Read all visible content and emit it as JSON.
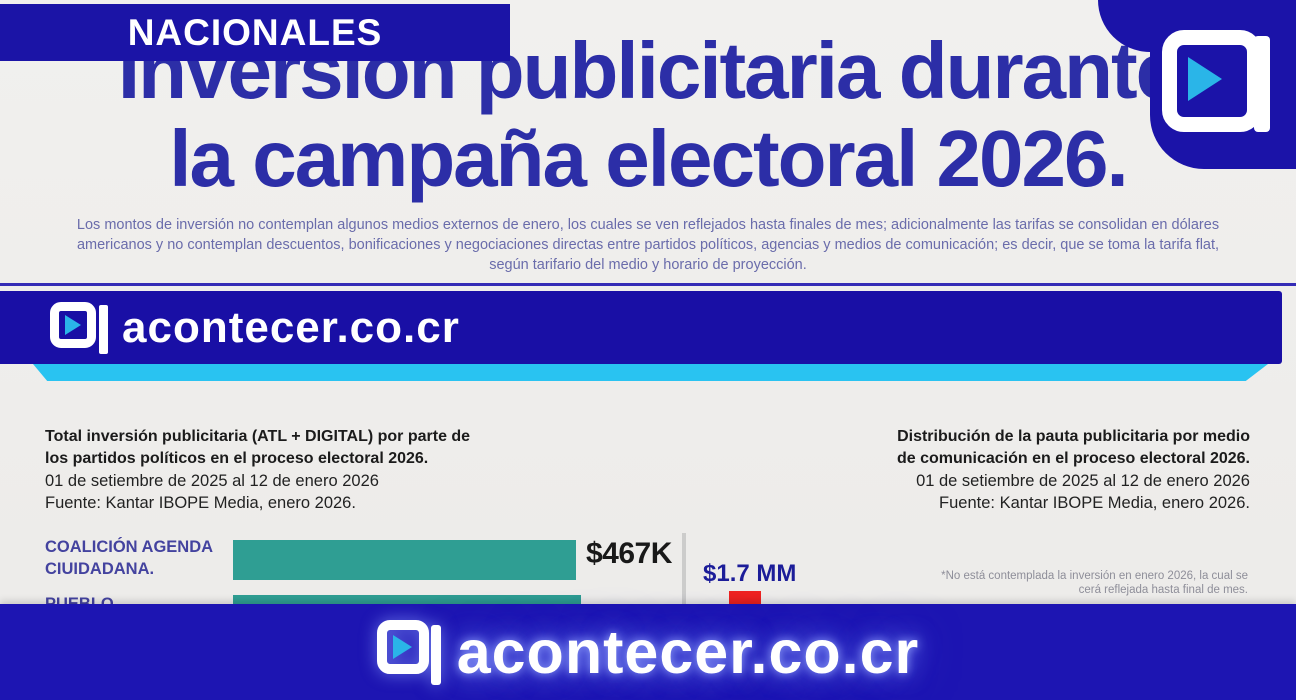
{
  "badge": {
    "label": "NACIONALES"
  },
  "headline": {
    "line1": "Inversión publicitaria durante",
    "line2": "la campaña electoral 2026."
  },
  "disclaimer": {
    "line1": "Los montos de inversión no contemplan algunos medios externos de enero, los cuales se ven reflejados hasta finales de mes; adicionalmente las tarifas se consolidan en dólares",
    "line2": "americanos y no contemplan descuentos, bonificaciones y negociaciones directas entre partidos políticos, agencias y medios de comunicación; es decir, que se toma la tarifa flat,",
    "line3": "según tarifario del medio y horario de proyección."
  },
  "brand": {
    "wordmark": "acontecer.co.cr"
  },
  "left_chart": {
    "title_line1": "Total inversión publicitaria (ATL + DIGITAL) por parte de",
    "title_line2": "los partidos políticos en el proceso electoral 2026.",
    "date_line": "01 de setiembre de 2025 al 12 de enero 2026",
    "source_line": "Fuente: Kantar IBOPE Media, enero 2026.",
    "rows": [
      {
        "label_line1": "COALICIÓN AGENDA",
        "label_line2": "CIUIDADANA.",
        "value": "$467K"
      },
      {
        "label_line1": "PUEBLO",
        "label_line2": "",
        "value": ""
      }
    ]
  },
  "right_chart": {
    "title_line1": "Distribución de la pauta publicitaria por medio",
    "title_line2": "de comunicación en el proceso electoral 2026.",
    "date_line": "01 de setiembre de 2025 al 12 de enero 2026",
    "source_line": "Fuente: Kantar IBOPE Media, enero 2026.",
    "value": "$1.7 MM",
    "note_line1": "*No está contemplada la inversión en enero 2026, la cual se",
    "note_line2": "cerá reflejada hasta final de mes."
  },
  "chart_data": [
    {
      "type": "bar",
      "orientation": "horizontal",
      "title": "Total inversión publicitaria (ATL + DIGITAL) por parte de los partidos políticos en el proceso electoral 2026.",
      "period": "01 de setiembre de 2025 al 12 de enero 2026",
      "source": "Fuente: Kantar IBOPE Media, enero 2026.",
      "categories": [
        "COALICIÓN AGENDA CIUIDADANA.",
        "PUEBLO"
      ],
      "values_label": [
        "$467K",
        null
      ],
      "values_usd": [
        467000,
        null
      ],
      "bar_color": "#2f9e93",
      "legend": "none",
      "truncated_by_footer": true
    },
    {
      "type": "bar",
      "orientation": "vertical",
      "title": "Distribución de la pauta publicitaria por medio de comunicación en el proceso electoral 2026.",
      "period": "01 de setiembre de 2025 al 12 de enero 2026",
      "source": "Fuente: Kantar IBOPE Media, enero 2026.",
      "categories": [
        ""
      ],
      "values_label": [
        "$1.7 MM"
      ],
      "values_usd": [
        1700000
      ],
      "bar_color": "#ee2320",
      "legend": "none",
      "note": "*No está contemplada la inversión en enero 2026, la cual se cerá reflejada hasta final de mes.",
      "truncated_by_footer": true
    }
  ],
  "colors": {
    "brand_blue": "#1a12a8",
    "footer_blue": "#1d15b2",
    "cyan_accent": "#29c3f1",
    "teal_bar": "#2f9e93",
    "red_bar": "#ee2320",
    "headline_blue": "#2c2ea7"
  }
}
